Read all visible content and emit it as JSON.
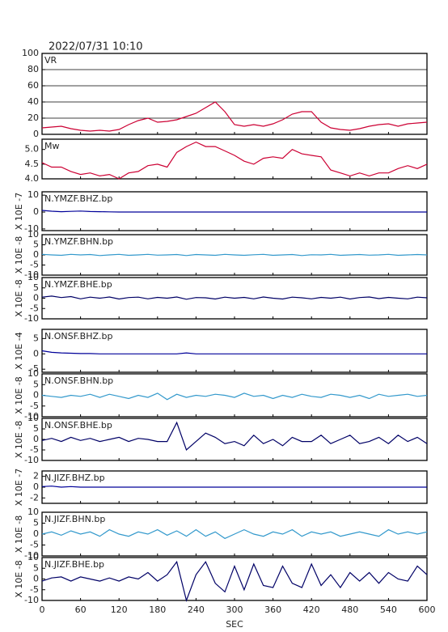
{
  "title": "2022/07/31 10:10",
  "x_label": "SEC",
  "xlim": [
    0,
    600
  ],
  "xticks": [
    0,
    60,
    120,
    180,
    240,
    300,
    360,
    420,
    480,
    540,
    600
  ],
  "x": [
    0,
    15,
    30,
    45,
    60,
    75,
    90,
    105,
    120,
    135,
    150,
    165,
    180,
    195,
    210,
    225,
    240,
    255,
    270,
    285,
    300,
    315,
    330,
    345,
    360,
    375,
    390,
    405,
    420,
    435,
    450,
    465,
    480,
    495,
    510,
    525,
    540,
    555,
    570,
    585,
    600
  ],
  "chart_data": [
    {
      "type": "line",
      "title": "VR",
      "ylim": [
        0,
        100
      ],
      "yticks": [
        0,
        20,
        40,
        60,
        80,
        100
      ],
      "grid": true,
      "series": [
        {
          "color": "#cc0033",
          "values": [
            8,
            9,
            10,
            7,
            5,
            4,
            5,
            4,
            6,
            12,
            17,
            20,
            15,
            16,
            18,
            22,
            26,
            33,
            40,
            28,
            12,
            10,
            12,
            10,
            13,
            18,
            25,
            28,
            28,
            15,
            8,
            6,
            5,
            7,
            10,
            12,
            13,
            10,
            13,
            14,
            15
          ]
        }
      ]
    },
    {
      "type": "line",
      "title": "Mw",
      "ylim": [
        4,
        5.35
      ],
      "yticks": [
        {
          "value": 4,
          "label": "4.0"
        },
        4.5,
        {
          "value": 5,
          "label": "5.0"
        }
      ],
      "grid": false,
      "series": [
        {
          "color": "#cc0033",
          "values": [
            4.55,
            4.4,
            4.4,
            4.25,
            4.15,
            4.2,
            4.1,
            4.15,
            4.0,
            4.2,
            4.25,
            4.45,
            4.5,
            4.4,
            4.9,
            5.1,
            5.25,
            5.1,
            5.1,
            4.95,
            4.8,
            4.6,
            4.5,
            4.7,
            4.75,
            4.7,
            5.0,
            4.85,
            4.8,
            4.75,
            4.3,
            4.2,
            4.1,
            4.2,
            4.1,
            4.2,
            4.2,
            4.35,
            4.45,
            4.35,
            4.5
          ]
        }
      ]
    },
    {
      "type": "line",
      "title": "N.YMZF.BHZ.bp",
      "y_label": "X 10E -7",
      "ylim": [
        -11,
        12
      ],
      "yticks": [
        -10,
        0,
        10
      ],
      "series": [
        {
          "color": "#000099",
          "values": [
            1,
            0.5,
            0.2,
            0.4,
            0.6,
            0.3,
            0.2,
            0.1,
            0,
            0,
            0,
            0,
            0,
            0,
            0,
            0,
            0,
            0,
            0,
            0,
            0,
            0,
            0,
            0,
            0,
            0,
            0,
            0,
            0,
            0,
            0,
            0,
            0,
            0,
            0,
            0,
            0,
            0,
            0,
            0,
            0
          ]
        }
      ]
    },
    {
      "type": "line",
      "title": "N.YMZF.BHN.bp",
      "y_label": "X 10E -8",
      "ylim": [
        -10,
        10
      ],
      "yticks": [
        -10,
        -5,
        0,
        5,
        10
      ],
      "series": [
        {
          "color": "#3399cc",
          "values": [
            0.3,
            0,
            -0.2,
            0.3,
            0,
            0.2,
            -0.3,
            0,
            0.3,
            -0.2,
            0,
            0.3,
            -0.1,
            0,
            0.2,
            -0.3,
            0.2,
            0,
            -0.2,
            0.3,
            0,
            -0.2,
            0.1,
            0.3,
            -0.2,
            0,
            0.2,
            -0.3,
            0.1,
            0,
            0.3,
            -0.2,
            0,
            0.2,
            -0.1,
            0,
            0.3,
            -0.2,
            0,
            0.2,
            0
          ]
        }
      ]
    },
    {
      "type": "line",
      "title": "N.YMZF.BHE.bp",
      "y_label": "X 10E -8",
      "ylim": [
        -10,
        10
      ],
      "yticks": [
        -10,
        -5,
        0,
        5,
        10
      ],
      "series": [
        {
          "color": "#000066",
          "values": [
            0.5,
            1,
            0.3,
            0.8,
            -0.3,
            0.5,
            0,
            0.6,
            -0.4,
            0.3,
            0.5,
            -0.3,
            0.4,
            0,
            0.6,
            -0.5,
            0.3,
            0.2,
            -0.4,
            0.5,
            0,
            0.4,
            -0.3,
            0.6,
            0,
            -0.4,
            0.5,
            0.2,
            -0.3,
            0.4,
            0,
            0.5,
            -0.4,
            0.3,
            0.6,
            -0.2,
            0.4,
            0,
            -0.3,
            0.5,
            0.2
          ]
        }
      ]
    },
    {
      "type": "line",
      "title": "N.ONSF.BHZ.bp",
      "y_label": "X 10E -4",
      "ylim": [
        -6,
        8
      ],
      "yticks": [
        -5,
        0,
        5
      ],
      "series": [
        {
          "color": "#000099",
          "values": [
            1,
            0.5,
            0.3,
            0.2,
            0.1,
            0.1,
            0,
            0,
            0,
            0,
            0,
            0,
            0,
            0,
            0,
            0.3,
            0,
            0,
            0,
            0,
            0,
            0,
            0,
            0,
            0,
            0,
            0,
            0,
            0,
            0,
            0,
            0,
            0,
            0,
            0,
            0,
            0,
            0,
            0,
            0,
            0
          ]
        }
      ]
    },
    {
      "type": "line",
      "title": "N.ONSF.BHN.bp",
      "y_label": "X 10E -8",
      "ylim": [
        -10,
        10
      ],
      "yticks": [
        -10,
        -5,
        0,
        5,
        10
      ],
      "series": [
        {
          "color": "#3399cc",
          "values": [
            0,
            -0.5,
            -1,
            0,
            -0.5,
            0.5,
            -1,
            0.5,
            -0.5,
            -1.5,
            0,
            -1,
            1,
            -2,
            0.5,
            -1,
            0,
            -0.5,
            0.5,
            0,
            -1,
            1,
            -0.5,
            0,
            -1.5,
            0,
            -1,
            0.5,
            -0.5,
            -1,
            0.5,
            0,
            -1,
            0,
            -1.5,
            0.5,
            -0.5,
            0,
            0.5,
            -0.5,
            0
          ]
        }
      ]
    },
    {
      "type": "line",
      "title": "N.ONSF.BHE.bp",
      "y_label": "X 10E -8",
      "ylim": [
        -10,
        10
      ],
      "yticks": [
        -10,
        -5,
        0,
        5,
        10
      ],
      "series": [
        {
          "color": "#000066",
          "values": [
            -0.5,
            0.5,
            -1,
            1,
            -0.5,
            0.5,
            -1,
            0,
            1,
            -1,
            0.5,
            0,
            -1,
            -1,
            8,
            -5,
            -1,
            3,
            1,
            -2,
            -1,
            -3,
            2,
            -2,
            0,
            -3,
            1,
            -1,
            -1,
            2,
            -2,
            0,
            2,
            -2,
            -1,
            1,
            -2,
            2,
            -1,
            1,
            -2
          ]
        }
      ]
    },
    {
      "type": "line",
      "title": "N.JIZF.BHZ.bp",
      "y_label": "X 10E -7",
      "ylim": [
        -3,
        3
      ],
      "yticks": [
        -2,
        0,
        2
      ],
      "series": [
        {
          "color": "#000099",
          "values": [
            0.1,
            0.2,
            0,
            0.1,
            0,
            0,
            0,
            0,
            0,
            0,
            0,
            0,
            0,
            0,
            0,
            0,
            0,
            0,
            0,
            0,
            0,
            0,
            0,
            0,
            0,
            0,
            0,
            0,
            0,
            0,
            0,
            0,
            0,
            0,
            0,
            0,
            0,
            0,
            0,
            0,
            0
          ]
        }
      ]
    },
    {
      "type": "line",
      "title": "N.JIZF.BHN.bp",
      "y_label": "X 10E -8",
      "ylim": [
        -10,
        10
      ],
      "yticks": [
        -10,
        -5,
        0,
        5,
        10
      ],
      "series": [
        {
          "color": "#3399cc",
          "values": [
            0,
            1,
            -0.5,
            1.5,
            0,
            1,
            -1,
            2,
            0,
            -1,
            1,
            0,
            2,
            -0.5,
            1.5,
            -1,
            2,
            -1,
            1,
            -2,
            0,
            2,
            0,
            -1,
            1,
            0,
            2,
            -1,
            1,
            0,
            1,
            -1,
            0,
            1,
            0,
            -1,
            2,
            0,
            1,
            0,
            1
          ]
        }
      ]
    },
    {
      "type": "line",
      "title": "N.JIZF.BHE.bp",
      "y_label": "X 10E -8",
      "ylim": [
        -10,
        10
      ],
      "yticks": [
        -10,
        -5,
        0,
        5,
        10
      ],
      "series": [
        {
          "color": "#000066",
          "values": [
            -1,
            0.5,
            1,
            -1,
            1,
            0,
            -1,
            0.5,
            -1,
            1,
            0,
            3,
            -1,
            2,
            8,
            -10,
            2,
            8,
            -2,
            -6,
            6,
            -5,
            7,
            -3,
            -4,
            6,
            -2,
            -4,
            7,
            -3,
            2,
            -4,
            3,
            -1,
            3,
            -2,
            3,
            0,
            -1,
            6,
            2
          ]
        }
      ]
    }
  ]
}
